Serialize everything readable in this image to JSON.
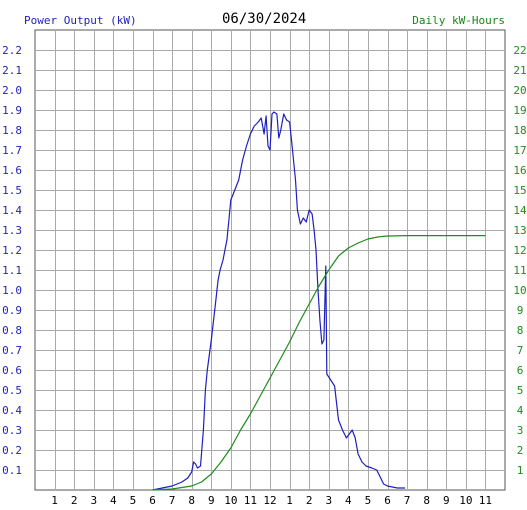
{
  "header": {
    "left_label": "Power Output (kW)",
    "date": "06/30/2024",
    "right_label": "Daily kW-Hours"
  },
  "chart_data": {
    "type": "line",
    "title": "06/30/2024",
    "x_axis": {
      "tick_labels": [
        "1",
        "2",
        "3",
        "4",
        "5",
        "6",
        "7",
        "8",
        "9",
        "10",
        "11",
        "12",
        "1",
        "2",
        "3",
        "4",
        "5",
        "6",
        "7",
        "8",
        "9",
        "10",
        "11"
      ],
      "range_hours": [
        0,
        24
      ]
    },
    "y_left": {
      "label": "Power Output (kW)",
      "range": [
        0,
        2.3
      ],
      "tick_labels": [
        "0.1",
        "0.2",
        "0.3",
        "0.4",
        "0.5",
        "0.6",
        "0.7",
        "0.8",
        "0.9",
        "1.0",
        "1.1",
        "1.2",
        "1.3",
        "1.4",
        "1.5",
        "1.6",
        "1.7",
        "1.8",
        "1.9",
        "2.0",
        "2.1",
        "2.2"
      ]
    },
    "y_right": {
      "label": "Daily kW-Hours",
      "range": [
        0,
        23
      ],
      "tick_labels": [
        "1",
        "2",
        "3",
        "4",
        "5",
        "6",
        "7",
        "8",
        "9",
        "10",
        "11",
        "12",
        "13",
        "14",
        "15",
        "16",
        "17",
        "18",
        "19",
        "20",
        "21",
        "22"
      ]
    },
    "grid": true,
    "colors": {
      "power": "#1f1fbf",
      "energy": "#1e8c1e",
      "grid": "#aaaaaa"
    },
    "series": [
      {
        "name": "Power Output (kW)",
        "axis": "left",
        "points": [
          [
            6.0,
            0.0
          ],
          [
            6.5,
            0.01
          ],
          [
            7.0,
            0.02
          ],
          [
            7.5,
            0.04
          ],
          [
            7.8,
            0.06
          ],
          [
            8.0,
            0.09
          ],
          [
            8.1,
            0.14
          ],
          [
            8.2,
            0.13
          ],
          [
            8.3,
            0.11
          ],
          [
            8.45,
            0.12
          ],
          [
            8.6,
            0.3
          ],
          [
            8.7,
            0.5
          ],
          [
            8.8,
            0.6
          ],
          [
            9.0,
            0.75
          ],
          [
            9.2,
            0.92
          ],
          [
            9.35,
            1.05
          ],
          [
            9.45,
            1.1
          ],
          [
            9.6,
            1.15
          ],
          [
            9.8,
            1.25
          ],
          [
            9.9,
            1.35
          ],
          [
            10.0,
            1.45
          ],
          [
            10.2,
            1.5
          ],
          [
            10.4,
            1.55
          ],
          [
            10.6,
            1.65
          ],
          [
            10.8,
            1.72
          ],
          [
            11.0,
            1.78
          ],
          [
            11.2,
            1.82
          ],
          [
            11.4,
            1.84
          ],
          [
            11.55,
            1.86
          ],
          [
            11.7,
            1.78
          ],
          [
            11.8,
            1.87
          ],
          [
            11.9,
            1.72
          ],
          [
            12.0,
            1.7
          ],
          [
            12.1,
            1.88
          ],
          [
            12.2,
            1.89
          ],
          [
            12.35,
            1.88
          ],
          [
            12.45,
            1.76
          ],
          [
            12.55,
            1.8
          ],
          [
            12.7,
            1.88
          ],
          [
            12.85,
            1.85
          ],
          [
            13.0,
            1.84
          ],
          [
            13.1,
            1.75
          ],
          [
            13.2,
            1.65
          ],
          [
            13.3,
            1.55
          ],
          [
            13.4,
            1.4
          ],
          [
            13.55,
            1.33
          ],
          [
            13.7,
            1.36
          ],
          [
            13.85,
            1.34
          ],
          [
            14.0,
            1.4
          ],
          [
            14.15,
            1.38
          ],
          [
            14.25,
            1.3
          ],
          [
            14.35,
            1.2
          ],
          [
            14.45,
            1.0
          ],
          [
            14.55,
            0.85
          ],
          [
            14.65,
            0.73
          ],
          [
            14.75,
            0.75
          ],
          [
            14.85,
            1.12
          ],
          [
            14.9,
            0.58
          ],
          [
            15.1,
            0.55
          ],
          [
            15.3,
            0.52
          ],
          [
            15.5,
            0.35
          ],
          [
            15.7,
            0.3
          ],
          [
            15.9,
            0.26
          ],
          [
            16.05,
            0.28
          ],
          [
            16.2,
            0.3
          ],
          [
            16.35,
            0.26
          ],
          [
            16.5,
            0.18
          ],
          [
            16.7,
            0.14
          ],
          [
            16.9,
            0.12
          ],
          [
            17.2,
            0.11
          ],
          [
            17.45,
            0.1
          ],
          [
            17.6,
            0.07
          ],
          [
            17.8,
            0.03
          ],
          [
            18.0,
            0.02
          ],
          [
            18.5,
            0.01
          ],
          [
            18.9,
            0.01
          ]
        ]
      },
      {
        "name": "Daily kW-Hours",
        "axis": "right",
        "points": [
          [
            6.0,
            0.0
          ],
          [
            7.0,
            0.05
          ],
          [
            8.0,
            0.2
          ],
          [
            8.5,
            0.4
          ],
          [
            9.0,
            0.8
          ],
          [
            9.5,
            1.4
          ],
          [
            10.0,
            2.1
          ],
          [
            10.5,
            3.0
          ],
          [
            11.0,
            3.8
          ],
          [
            11.5,
            4.7
          ],
          [
            12.0,
            5.6
          ],
          [
            12.5,
            6.5
          ],
          [
            13.0,
            7.4
          ],
          [
            13.5,
            8.4
          ],
          [
            14.0,
            9.3
          ],
          [
            14.5,
            10.2
          ],
          [
            15.0,
            11.0
          ],
          [
            15.5,
            11.7
          ],
          [
            16.0,
            12.1
          ],
          [
            16.5,
            12.35
          ],
          [
            17.0,
            12.55
          ],
          [
            17.5,
            12.65
          ],
          [
            18.0,
            12.7
          ],
          [
            19.0,
            12.72
          ],
          [
            20.0,
            12.72
          ],
          [
            22.0,
            12.72
          ],
          [
            23.0,
            12.72
          ]
        ]
      }
    ]
  }
}
